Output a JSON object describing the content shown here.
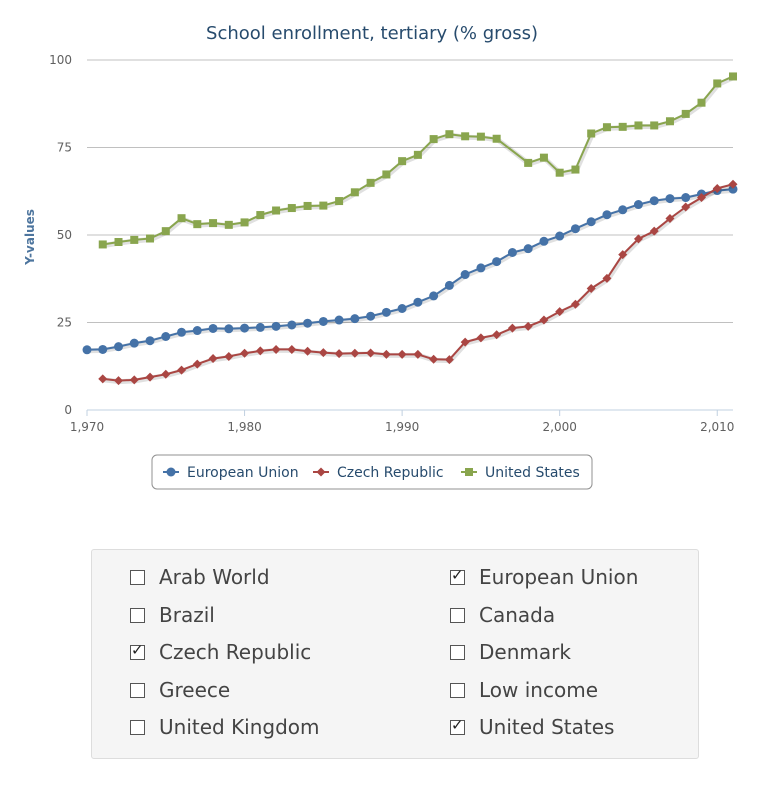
{
  "chart_data": {
    "type": "line",
    "title": "School enrollment, tertiary (% gross)",
    "ylabel": "Y-values",
    "xlabel": "",
    "xlim": [
      1970,
      2011
    ],
    "ylim": [
      0,
      100
    ],
    "x_ticks": [
      1970,
      1980,
      1990,
      2000,
      2010
    ],
    "x_tick_labels": [
      "1,970",
      "1,980",
      "1,990",
      "2,000",
      "2,010"
    ],
    "y_ticks": [
      0,
      25,
      50,
      75,
      100
    ],
    "y_tick_labels": [
      "0",
      "25",
      "50",
      "75",
      "100"
    ],
    "grid": true,
    "legend_position": "bottom",
    "series": [
      {
        "name": "European Union",
        "color": "#4572a7",
        "marker": "circle",
        "x": [
          1970,
          1971,
          1972,
          1973,
          1974,
          1975,
          1976,
          1977,
          1978,
          1979,
          1980,
          1981,
          1982,
          1983,
          1984,
          1985,
          1986,
          1987,
          1988,
          1989,
          1990,
          1991,
          1992,
          1993,
          1994,
          1995,
          1996,
          1997,
          1998,
          1999,
          2000,
          2001,
          2002,
          2003,
          2004,
          2005,
          2006,
          2007,
          2008,
          2009,
          2010,
          2011
        ],
        "y": [
          17.2,
          17.3,
          18.1,
          19.1,
          19.8,
          21.0,
          22.2,
          22.7,
          23.3,
          23.2,
          23.4,
          23.6,
          23.9,
          24.3,
          24.8,
          25.3,
          25.7,
          26.1,
          26.8,
          27.9,
          29.0,
          30.8,
          32.6,
          35.6,
          38.7,
          40.6,
          42.4,
          45.0,
          46.1,
          48.2,
          49.7,
          51.8,
          53.8,
          55.8,
          57.2,
          58.7,
          59.8,
          60.4,
          60.7,
          61.7,
          62.7,
          63.1
        ]
      },
      {
        "name": "Czech Republic",
        "color": "#aa4643",
        "marker": "diamond",
        "x": [
          1971,
          1972,
          1973,
          1974,
          1975,
          1976,
          1977,
          1978,
          1979,
          1980,
          1981,
          1982,
          1983,
          1984,
          1985,
          1986,
          1987,
          1988,
          1989,
          1990,
          1991,
          1992,
          1993,
          1994,
          1995,
          1996,
          1997,
          1998,
          1999,
          2000,
          2001,
          2002,
          2003,
          2004,
          2005,
          2006,
          2007,
          2008,
          2009,
          2010,
          2011
        ],
        "y": [
          8.9,
          8.4,
          8.6,
          9.4,
          10.2,
          11.4,
          13.1,
          14.7,
          15.3,
          16.2,
          16.9,
          17.3,
          17.3,
          16.8,
          16.4,
          16.1,
          16.2,
          16.3,
          15.9,
          15.9,
          15.9,
          14.5,
          14.4,
          19.4,
          20.6,
          21.5,
          23.4,
          23.9,
          25.7,
          28.1,
          30.2,
          34.7,
          37.6,
          44.4,
          48.9,
          51.1,
          54.7,
          58.0,
          60.7,
          63.3,
          64.5
        ]
      },
      {
        "name": "United States",
        "color": "#89a54e",
        "marker": "square",
        "x": [
          1971,
          1972,
          1973,
          1974,
          1975,
          1976,
          1977,
          1978,
          1979,
          1980,
          1981,
          1982,
          1983,
          1984,
          1985,
          1986,
          1987,
          1988,
          1989,
          1990,
          1991,
          1992,
          1993,
          1994,
          1995,
          1996,
          1998,
          1999,
          2000,
          2001,
          2002,
          2003,
          2004,
          2005,
          2006,
          2007,
          2008,
          2009,
          2010,
          2011
        ],
        "y": [
          47.3,
          48.0,
          48.6,
          49.0,
          51.1,
          54.8,
          53.1,
          53.4,
          52.9,
          53.6,
          55.7,
          57.0,
          57.7,
          58.3,
          58.4,
          59.7,
          62.2,
          64.9,
          67.3,
          71.1,
          72.9,
          77.4,
          78.8,
          78.2,
          78.1,
          77.5,
          70.6,
          72.1,
          67.8,
          68.7,
          79.0,
          80.8,
          80.9,
          81.3,
          81.3,
          82.5,
          84.6,
          87.8,
          93.3,
          95.3
        ]
      }
    ]
  },
  "selector": {
    "options": [
      {
        "label": "Arab World",
        "checked": false
      },
      {
        "label": "European Union",
        "checked": true
      },
      {
        "label": "Brazil",
        "checked": false
      },
      {
        "label": "Canada",
        "checked": false
      },
      {
        "label": "Czech Republic",
        "checked": true
      },
      {
        "label": "Denmark",
        "checked": false
      },
      {
        "label": "Greece",
        "checked": false
      },
      {
        "label": "Low income",
        "checked": false
      },
      {
        "label": "United Kingdom",
        "checked": false
      },
      {
        "label": "United States",
        "checked": true
      }
    ]
  }
}
